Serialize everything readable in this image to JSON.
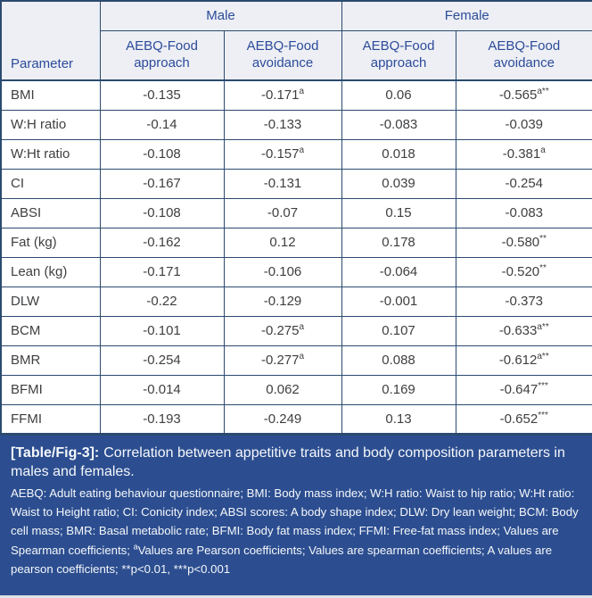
{
  "colors": {
    "border": "#2b4a6f",
    "header_background": "#edeff4",
    "header_text": "#2c4b9b",
    "body_text": "#3e3f41",
    "footer_background": "#2c4e90",
    "footer_text": "#f5f7fa"
  },
  "table": {
    "header": {
      "parameter_label": "Parameter",
      "groups": [
        {
          "label": "Male"
        },
        {
          "label": "Female"
        }
      ],
      "subcolumns": [
        {
          "label": "AEBQ-Food approach"
        },
        {
          "label": "AEBQ-Food avoidance"
        },
        {
          "label": "AEBQ-Food approach"
        },
        {
          "label": "AEBQ-Food avoidance"
        }
      ]
    },
    "rows": [
      {
        "parameter": "BMI",
        "values": [
          {
            "v": "-0.135"
          },
          {
            "v": "-0.171",
            "sup": "a"
          },
          {
            "v": "0.06"
          },
          {
            "v": "-0.565",
            "sup": "a**"
          }
        ]
      },
      {
        "parameter": "W:H ratio",
        "values": [
          {
            "v": "-0.14"
          },
          {
            "v": "-0.133"
          },
          {
            "v": "-0.083"
          },
          {
            "v": "-0.039"
          }
        ]
      },
      {
        "parameter": "W:Ht ratio",
        "values": [
          {
            "v": "-0.108"
          },
          {
            "v": "-0.157",
            "sup": "a"
          },
          {
            "v": "0.018"
          },
          {
            "v": "-0.381",
            "sup": "a"
          }
        ]
      },
      {
        "parameter": "CI",
        "values": [
          {
            "v": "-0.167"
          },
          {
            "v": "-0.131"
          },
          {
            "v": "0.039"
          },
          {
            "v": "-0.254"
          }
        ]
      },
      {
        "parameter": "ABSI",
        "values": [
          {
            "v": "-0.108"
          },
          {
            "v": "-0.07"
          },
          {
            "v": "0.15"
          },
          {
            "v": "-0.083"
          }
        ]
      },
      {
        "parameter": "Fat (kg)",
        "values": [
          {
            "v": "-0.162"
          },
          {
            "v": "0.12"
          },
          {
            "v": "0.178"
          },
          {
            "v": "-0.580",
            "sup": "**"
          }
        ]
      },
      {
        "parameter": "Lean (kg)",
        "values": [
          {
            "v": "-0.171"
          },
          {
            "v": "-0.106"
          },
          {
            "v": "-0.064"
          },
          {
            "v": "-0.520",
            "sup": "**"
          }
        ]
      },
      {
        "parameter": "DLW",
        "values": [
          {
            "v": "-0.22"
          },
          {
            "v": "-0.129"
          },
          {
            "v": "-0.001"
          },
          {
            "v": "-0.373"
          }
        ]
      },
      {
        "parameter": "BCM",
        "values": [
          {
            "v": "-0.101"
          },
          {
            "v": "-0.275",
            "sup": "a"
          },
          {
            "v": "0.107"
          },
          {
            "v": "-0.633",
            "sup": "a**"
          }
        ]
      },
      {
        "parameter": "BMR",
        "values": [
          {
            "v": "-0.254"
          },
          {
            "v": "-0.277",
            "sup": "a"
          },
          {
            "v": "0.088"
          },
          {
            "v": "-0.612",
            "sup": "a**"
          }
        ]
      },
      {
        "parameter": "BFMI",
        "values": [
          {
            "v": "-0.014"
          },
          {
            "v": "0.062"
          },
          {
            "v": "0.169"
          },
          {
            "v": "-0.647",
            "sup": "***"
          }
        ]
      },
      {
        "parameter": "FFMI",
        "values": [
          {
            "v": "-0.193"
          },
          {
            "v": "-0.249"
          },
          {
            "v": "0.13"
          },
          {
            "v": "-0.652",
            "sup": "***"
          }
        ]
      }
    ]
  },
  "caption": {
    "label": "[Table/Fig-3]:",
    "text": "Correlation between appetitive traits and body composition parameters in males and females."
  },
  "footnote": {
    "part1": "AEBQ: Adult eating behaviour questionnaire; BMI: Body mass index; W:H ratio: Waist to hip ratio; W:Ht ratio: Waist to Height ratio; CI: Conicity index; ABSI scores: A body shape index; DLW: Dry lean weight; BCM: Body cell mass; BMR: Basal metabolic rate; BFMI: Body fat mass index; FFMI: Free-fat mass index; Values are Spearman coefficients; ",
    "sup": "a",
    "part2": "Values are Pearson coefficients; Values are spearman coefficients; A values are pearson coefficients; **p<0.01, ***p<0.001"
  }
}
